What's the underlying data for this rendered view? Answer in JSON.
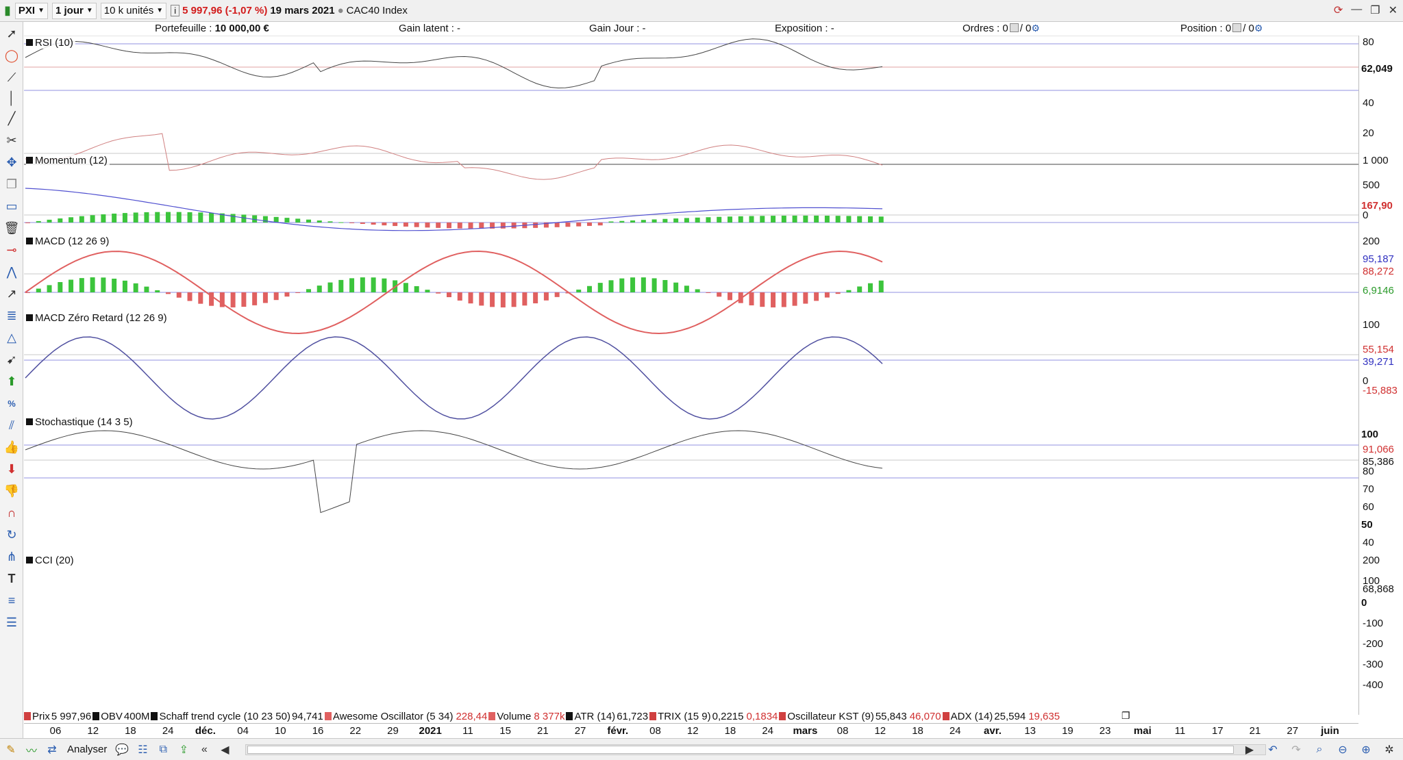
{
  "toolbar": {
    "symbol": "PXI",
    "period": "1 jour",
    "units": "10 k unités",
    "price_change": "5 997,96 (-1,07 %)",
    "date": "19 mars 2021",
    "index_name": "CAC40 Index"
  },
  "infobar": {
    "portefeuille_label": "Portefeuille :",
    "portefeuille_value": "10 000,00 €",
    "gain_latent": "Gain latent : -",
    "gain_jour": "Gain Jour : -",
    "exposition": "Exposition : -",
    "ordres_label": "Ordres : 0",
    "ordres_value": "/ 0",
    "position_label": "Position : 0",
    "position_value": "/ 0"
  },
  "colors": {
    "up_green": "#3cc43c",
    "down_red": "#e06060",
    "line_blue": "#5050d0",
    "ref_line": "#9090e0",
    "rsi_mid_line": "#e0a0a0"
  },
  "panels": {
    "rsi": {
      "title": "RSI (10)",
      "ticks": [
        "80",
        "40",
        "20"
      ],
      "value": "62,049"
    },
    "momentum": {
      "title": "Momentum (12)",
      "ticks": [
        "1 000",
        "500",
        "0"
      ],
      "value": "167,90"
    },
    "macd": {
      "title": "MACD (12 26 9)",
      "ticks": [
        "200"
      ],
      "v1": "95,187",
      "v2": "88,272",
      "v3": "6,9146"
    },
    "macd_zero": {
      "title": "MACD Zéro Retard (12 26 9)",
      "ticks": [
        "100",
        "0"
      ],
      "v1": "55,154",
      "v2": "39,271",
      "v3": "-15,883"
    },
    "stoch": {
      "title": "Stochastique (14 3 5)",
      "ticks": [
        "100",
        "80",
        "70",
        "60",
        "50",
        "40"
      ],
      "v1": "91,066",
      "v2": "85,386"
    },
    "cci": {
      "title": "CCI (20)",
      "ticks": [
        "200",
        "100",
        "0",
        "-100",
        "-200",
        "-300",
        "-400"
      ],
      "value": "68,868"
    }
  },
  "legend": [
    {
      "name": "Prix",
      "v1": "5 997,96",
      "v2": "",
      "color": "#d04040"
    },
    {
      "name": "OBV",
      "v1": "400M",
      "v2": "",
      "color": "#111111"
    },
    {
      "name": "Schaff trend cycle (10 23 50)",
      "v1": "94,741",
      "v2": "",
      "color": "#111111"
    },
    {
      "name": "Awesome Oscillator (5 34)",
      "v1": "",
      "v2": "228,44",
      "color": "#e06060"
    },
    {
      "name": "Volume",
      "v1": "",
      "v2": "8 377k",
      "color": "#e06060"
    },
    {
      "name": "ATR (14)",
      "v1": "61,723",
      "v2": "",
      "color": "#111111"
    },
    {
      "name": "TRIX (15 9)",
      "v1": "0,2215",
      "v2": "0,1834",
      "color": "#d04040"
    },
    {
      "name": "Oscillateur KST (9)",
      "v1": "55,843",
      "v2": "46,070",
      "color": "#d04040"
    },
    {
      "name": "ADX (14)",
      "v1": "25,594",
      "v2": "19,635",
      "color": "#d04040"
    }
  ],
  "xaxis": [
    {
      "label": "06",
      "bold": false
    },
    {
      "label": "12",
      "bold": false
    },
    {
      "label": "18",
      "bold": false
    },
    {
      "label": "24",
      "bold": false
    },
    {
      "label": "déc.",
      "bold": true
    },
    {
      "label": "04",
      "bold": false
    },
    {
      "label": "10",
      "bold": false
    },
    {
      "label": "16",
      "bold": false
    },
    {
      "label": "22",
      "bold": false
    },
    {
      "label": "29",
      "bold": false
    },
    {
      "label": "2021",
      "bold": true
    },
    {
      "label": "11",
      "bold": false
    },
    {
      "label": "15",
      "bold": false
    },
    {
      "label": "21",
      "bold": false
    },
    {
      "label": "27",
      "bold": false
    },
    {
      "label": "févr.",
      "bold": true
    },
    {
      "label": "08",
      "bold": false
    },
    {
      "label": "12",
      "bold": false
    },
    {
      "label": "18",
      "bold": false
    },
    {
      "label": "24",
      "bold": false
    },
    {
      "label": "mars",
      "bold": true
    },
    {
      "label": "08",
      "bold": false
    },
    {
      "label": "12",
      "bold": false
    },
    {
      "label": "18",
      "bold": false
    },
    {
      "label": "24",
      "bold": false
    },
    {
      "label": "avr.",
      "bold": true
    },
    {
      "label": "13",
      "bold": false
    },
    {
      "label": "19",
      "bold": false
    },
    {
      "label": "23",
      "bold": false
    },
    {
      "label": "mai",
      "bold": true
    },
    {
      "label": "11",
      "bold": false
    },
    {
      "label": "17",
      "bold": false
    },
    {
      "label": "21",
      "bold": false
    },
    {
      "label": "27",
      "bold": false
    },
    {
      "label": "juin",
      "bold": true
    }
  ],
  "bottombar": {
    "analyser_label": "Analyser"
  }
}
